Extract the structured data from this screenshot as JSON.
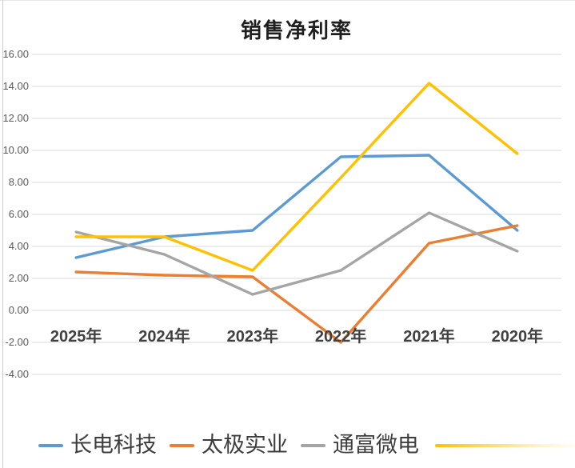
{
  "title": "销售净利率",
  "chart_data": {
    "type": "line",
    "title": "销售净利率",
    "categories": [
      "2025年",
      "2024年",
      "2023年",
      "2022年",
      "2021年",
      "2020年"
    ],
    "series": [
      {
        "name": "长电科技",
        "color": "#5B9BD5",
        "values": [
          3.3,
          4.6,
          5.0,
          9.6,
          9.7,
          5.0
        ]
      },
      {
        "name": "太极实业",
        "color": "#ED7D31",
        "values": [
          2.4,
          2.2,
          2.1,
          -2.0,
          4.2,
          5.3
        ]
      },
      {
        "name": "通富微电",
        "color": "#A5A5A5",
        "values": [
          4.9,
          3.5,
          1.0,
          2.5,
          6.1,
          3.7
        ]
      },
      {
        "name": "",
        "color": "#FFC000",
        "values": [
          4.6,
          4.6,
          2.5,
          8.3,
          14.2,
          9.8
        ],
        "legend_label_visible": false
      }
    ],
    "y_tick_labels": [
      "16.00",
      "14.00",
      "12.00",
      "10.00",
      "8.00",
      "6.00",
      "4.00",
      "2.00",
      "0.00",
      "-2.00",
      "-4.00"
    ],
    "y_tick_values": [
      16,
      14,
      12,
      10,
      8,
      6,
      4,
      2,
      0,
      -2,
      -4
    ],
    "ylim": [
      -4,
      16
    ],
    "grid": true,
    "gridline_color": "#d9d9d9",
    "axis_label_color": "#595959",
    "category_label_color": "#404040",
    "legend_position": "bottom",
    "legend_note": "fourth series legend label cut off at right edge of image"
  }
}
